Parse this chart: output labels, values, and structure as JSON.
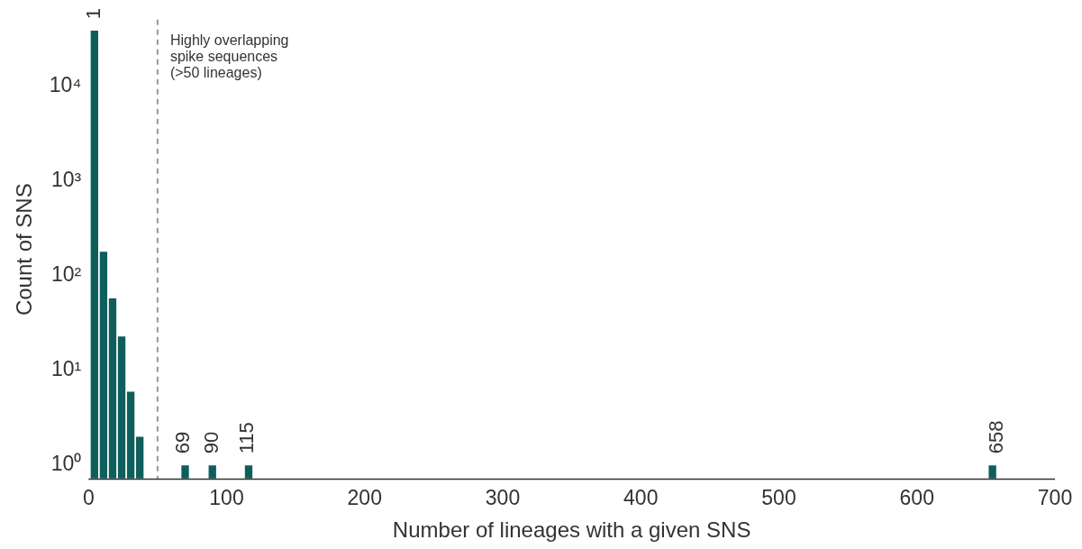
{
  "chart_data": {
    "type": "histogram",
    "xlabel": "Number of lineages with a given SNS",
    "ylabel": "Count of SNS",
    "bins": [
      1,
      7.57,
      14.14,
      20.71,
      27.28,
      33.85,
      40.42,
      46.99,
      53.56,
      60.13,
      66.7,
      73.27,
      79.84,
      86.41,
      92.98,
      99.55,
      106.12,
      112.69,
      119.26,
      125.83,
      132.4,
      138.97,
      145.54,
      152.11,
      158.68,
      165.25,
      171.82,
      178.39,
      184.96,
      191.53,
      198.1,
      204.67,
      211.24,
      217.81,
      224.38,
      230.95,
      237.52,
      244.09,
      250.66,
      257.23,
      263.8,
      270.37,
      276.94,
      283.51,
      290.08,
      296.65,
      303.22,
      309.79,
      316.36,
      322.93,
      329.5,
      336.07,
      342.64,
      349.21,
      355.78,
      362.35,
      368.92,
      375.49,
      382.06,
      388.63,
      395.2,
      401.77,
      408.34,
      414.91,
      421.48,
      428.05,
      434.62,
      441.19,
      447.76,
      454.33,
      460.9,
      467.47,
      474.04,
      480.61,
      487.18,
      493.75,
      500.32,
      506.89,
      513.46,
      520.03,
      526.6,
      533.17,
      539.74,
      546.31,
      552.88,
      559.45,
      566.02,
      572.59,
      579.16,
      585.73,
      592.3,
      598.87,
      605.44,
      612.01,
      618.58,
      625.15,
      631.72,
      638.29,
      644.86,
      651.43,
      658
    ],
    "values": [
      39000,
      180,
      58,
      23,
      6,
      2,
      null,
      null,
      null,
      null,
      1,
      null,
      null,
      1,
      null,
      null,
      null,
      1,
      null,
      null,
      null,
      null,
      null,
      null,
      null,
      null,
      null,
      null,
      null,
      null,
      null,
      null,
      null,
      null,
      null,
      null,
      null,
      null,
      null,
      null,
      null,
      null,
      null,
      null,
      null,
      null,
      null,
      null,
      null,
      null,
      null,
      null,
      null,
      null,
      null,
      null,
      null,
      null,
      null,
      null,
      null,
      null,
      null,
      null,
      null,
      null,
      null,
      null,
      null,
      null,
      null,
      null,
      null,
      null,
      null,
      null,
      null,
      null,
      null,
      null,
      null,
      null,
      null,
      null,
      null,
      null,
      null,
      null,
      null,
      null,
      null,
      null,
      null,
      null,
      null,
      null,
      null,
      null,
      null,
      1
    ],
    "color": "#0e5e5c",
    "log": "y",
    "grid": false,
    "xlim": [
      0,
      700
    ],
    "xticks": [
      0,
      100,
      200,
      300,
      400,
      500,
      600,
      700
    ],
    "ylim": [
      0.7,
      50000
    ],
    "yticks": [
      {
        "value": 1,
        "label": "10⁰"
      },
      {
        "value": 10,
        "label": "10¹"
      },
      {
        "value": 100,
        "label": "10²"
      },
      {
        "value": 1000,
        "label": "10³"
      },
      {
        "value": 10000,
        "label": "10⁴"
      }
    ],
    "ref_lines": [
      {
        "axis": "x",
        "value": 50,
        "label": "Highly overlapping\nspike sequences\n(>50 lineages)",
        "color": "#999999",
        "line_style": "dashed"
      }
    ],
    "annotations": [
      {
        "text": "1",
        "x": 4.3,
        "y": 39000
      },
      {
        "text": "69",
        "x": 69,
        "y": 1
      },
      {
        "text": "90",
        "x": 90,
        "y": 1
      },
      {
        "text": "115",
        "x": 115,
        "y": 1
      },
      {
        "text": "658",
        "x": 658,
        "y": 1
      }
    ]
  }
}
